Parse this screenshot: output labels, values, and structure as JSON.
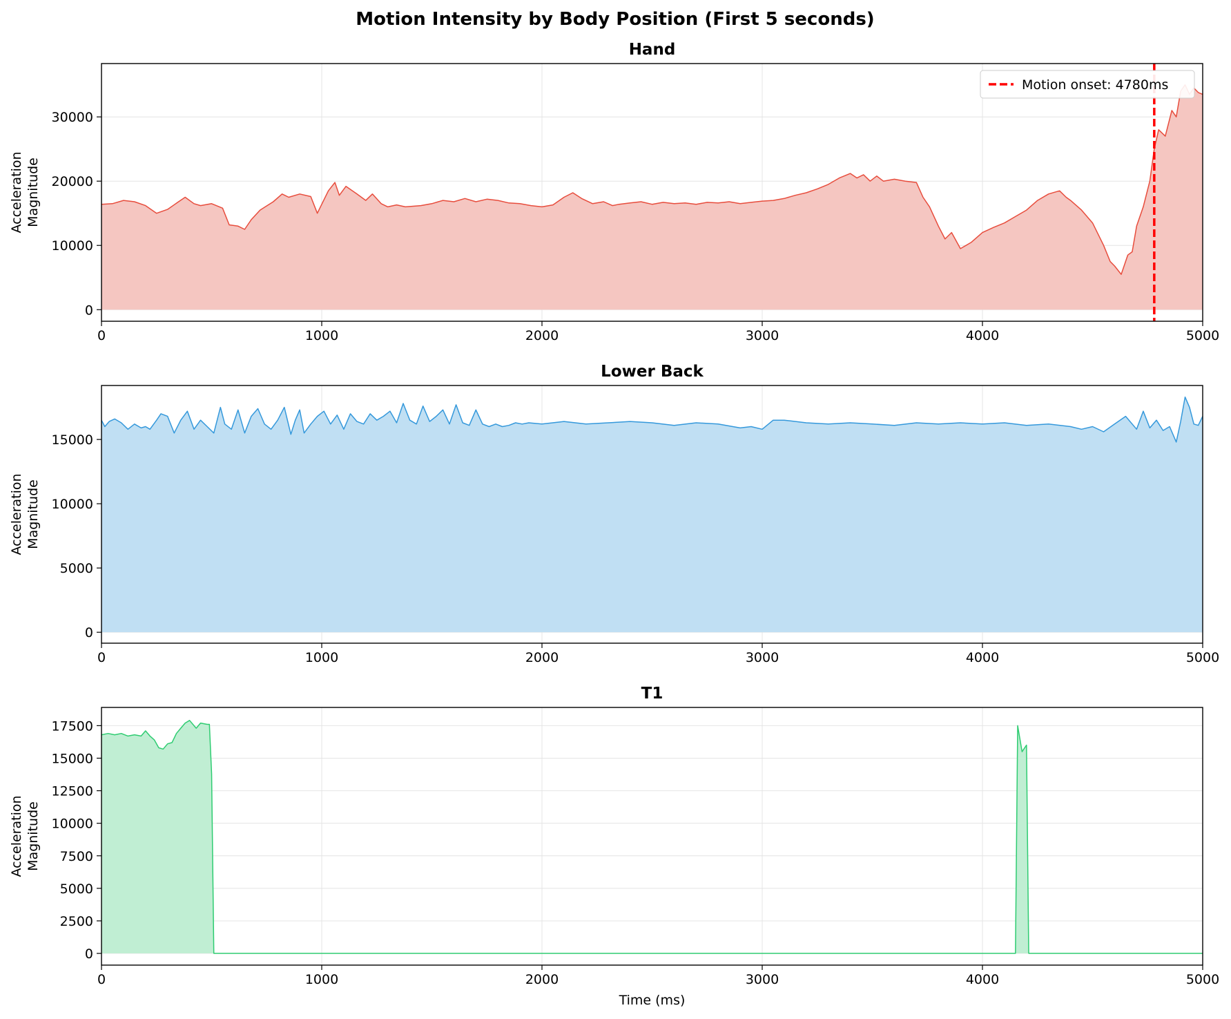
{
  "figure": {
    "title": "Motion Intensity by Body Position (First 5 seconds)"
  },
  "chart_data": [
    {
      "type": "area",
      "title": "Hand",
      "ylabel": "Acceleration Magnitude",
      "xlabel": "",
      "xlim": [
        0,
        5000
      ],
      "ylim": [
        -1800,
        38300
      ],
      "xticks": [
        0,
        1000,
        2000,
        3000,
        4000,
        5000
      ],
      "yticks": [
        0,
        10000,
        20000,
        30000
      ],
      "grid": true,
      "color": "#e74c3c",
      "fill_color": "#f5c6c1",
      "legend_position": "top-right",
      "series": [
        {
          "x": [
            0,
            50,
            100,
            150,
            200,
            250,
            300,
            350,
            380,
            420,
            450,
            500,
            550,
            580,
            620,
            650,
            680,
            720,
            780,
            820,
            850,
            900,
            950,
            980,
            1030,
            1060,
            1080,
            1110,
            1160,
            1200,
            1230,
            1270,
            1300,
            1340,
            1380,
            1450,
            1500,
            1550,
            1600,
            1650,
            1700,
            1750,
            1800,
            1850,
            1900,
            1950,
            2000,
            2050,
            2100,
            2140,
            2180,
            2230,
            2280,
            2320,
            2350,
            2400,
            2450,
            2500,
            2550,
            2600,
            2650,
            2700,
            2750,
            2800,
            2850,
            2900,
            2950,
            3000,
            3050,
            3100,
            3150,
            3200,
            3250,
            3300,
            3350,
            3400,
            3430,
            3460,
            3490,
            3520,
            3550,
            3600,
            3650,
            3700,
            3730,
            3760,
            3800,
            3830,
            3860,
            3900,
            3950,
            4000,
            4050,
            4100,
            4150,
            4200,
            4250,
            4300,
            4350,
            4380,
            4400,
            4450,
            4500,
            4550,
            4580,
            4600,
            4630,
            4660,
            4680,
            4700,
            4730,
            4760,
            4780,
            4800,
            4830,
            4860,
            4880,
            4900,
            4920,
            4940,
            4960,
            4980,
            5000
          ],
          "y": [
            16400,
            16500,
            17000,
            16800,
            16200,
            15000,
            15600,
            16800,
            17500,
            16500,
            16200,
            16500,
            15800,
            13200,
            13000,
            12500,
            14000,
            15500,
            16800,
            18000,
            17500,
            18000,
            17600,
            15000,
            18500,
            19800,
            17800,
            19200,
            18000,
            17000,
            18000,
            16500,
            16000,
            16300,
            16000,
            16200,
            16500,
            17000,
            16800,
            17300,
            16800,
            17200,
            17000,
            16600,
            16500,
            16200,
            16000,
            16300,
            17500,
            18200,
            17300,
            16500,
            16800,
            16200,
            16400,
            16600,
            16800,
            16400,
            16700,
            16500,
            16600,
            16400,
            16700,
            16600,
            16800,
            16500,
            16700,
            16900,
            17000,
            17300,
            17800,
            18200,
            18800,
            19500,
            20500,
            21200,
            20500,
            21000,
            20000,
            20800,
            20000,
            20300,
            20000,
            19800,
            17500,
            16000,
            13000,
            11000,
            12000,
            9500,
            10500,
            12000,
            12800,
            13500,
            14500,
            15500,
            17000,
            18000,
            18500,
            17500,
            17000,
            15500,
            13500,
            10000,
            7500,
            6800,
            5500,
            8500,
            9000,
            13000,
            16000,
            20000,
            25000,
            28000,
            27000,
            31000,
            30000,
            34000,
            35000,
            33500,
            34500,
            33800,
            33500
          ]
        }
      ],
      "annotations": [
        {
          "type": "vline",
          "x": 4780,
          "color": "#ff0000",
          "style": "dashed",
          "label": "Motion onset: 4780ms"
        }
      ]
    },
    {
      "type": "area",
      "title": "Lower Back",
      "ylabel": "Acceleration Magnitude",
      "xlabel": "",
      "xlim": [
        0,
        5000
      ],
      "ylim": [
        -850,
        19200
      ],
      "xticks": [
        0,
        1000,
        2000,
        3000,
        4000,
        5000
      ],
      "yticks": [
        0,
        5000,
        10000,
        15000
      ],
      "grid": true,
      "color": "#3498db",
      "fill_color": "#c0dff3",
      "series": [
        {
          "x": [
            0,
            15,
            35,
            60,
            90,
            120,
            150,
            180,
            200,
            220,
            250,
            270,
            300,
            330,
            360,
            390,
            420,
            450,
            480,
            510,
            540,
            560,
            590,
            620,
            650,
            680,
            710,
            740,
            770,
            800,
            830,
            860,
            880,
            900,
            920,
            950,
            980,
            1010,
            1040,
            1070,
            1100,
            1130,
            1160,
            1190,
            1220,
            1250,
            1280,
            1310,
            1340,
            1370,
            1400,
            1430,
            1460,
            1490,
            1520,
            1550,
            1580,
            1610,
            1640,
            1670,
            1700,
            1730,
            1760,
            1790,
            1820,
            1850,
            1880,
            1910,
            1940,
            2000,
            2100,
            2200,
            2300,
            2400,
            2500,
            2600,
            2700,
            2800,
            2900,
            2950,
            3000,
            3050,
            3100,
            3200,
            3300,
            3400,
            3500,
            3600,
            3700,
            3800,
            3900,
            4000,
            4100,
            4200,
            4300,
            4400,
            4450,
            4500,
            4550,
            4600,
            4650,
            4700,
            4730,
            4760,
            4790,
            4820,
            4850,
            4880,
            4900,
            4920,
            4940,
            4960,
            4980,
            5000
          ],
          "y": [
            16500,
            16000,
            16400,
            16600,
            16300,
            15800,
            16200,
            15900,
            16000,
            15800,
            16500,
            17000,
            16800,
            15500,
            16500,
            17200,
            15800,
            16500,
            16000,
            15500,
            17500,
            16200,
            15800,
            17300,
            15500,
            16800,
            17400,
            16200,
            15800,
            16500,
            17500,
            15400,
            16500,
            17300,
            15500,
            16200,
            16800,
            17200,
            16200,
            16900,
            15800,
            17000,
            16400,
            16200,
            17000,
            16500,
            16800,
            17200,
            16300,
            17800,
            16500,
            16200,
            17600,
            16400,
            16800,
            17300,
            16200,
            17700,
            16300,
            16100,
            17300,
            16200,
            16000,
            16200,
            16000,
            16100,
            16300,
            16200,
            16300,
            16200,
            16400,
            16200,
            16300,
            16400,
            16300,
            16100,
            16300,
            16200,
            15900,
            16000,
            15800,
            16500,
            16500,
            16300,
            16200,
            16300,
            16200,
            16100,
            16300,
            16200,
            16300,
            16200,
            16300,
            16100,
            16200,
            16000,
            15800,
            16000,
            15600,
            16200,
            16800,
            15800,
            17200,
            15900,
            16500,
            15700,
            16000,
            14800,
            16400,
            18300,
            17500,
            16200,
            16100,
            16800
          ]
        }
      ]
    },
    {
      "type": "area",
      "title": "T1",
      "ylabel": "Acceleration Magnitude",
      "xlabel": "Time (ms)",
      "xlim": [
        0,
        5000
      ],
      "ylim": [
        -900,
        18900
      ],
      "xticks": [
        0,
        1000,
        2000,
        3000,
        4000,
        5000
      ],
      "yticks": [
        0,
        2500,
        5000,
        7500,
        10000,
        12500,
        15000,
        17500
      ],
      "grid": true,
      "color": "#2ecc71",
      "fill_color": "#c0eed3",
      "series": [
        {
          "x": [
            0,
            30,
            60,
            90,
            120,
            150,
            180,
            200,
            220,
            240,
            260,
            280,
            300,
            320,
            340,
            360,
            380,
            400,
            430,
            450,
            480,
            490,
            500,
            510,
            530,
            1000,
            2000,
            3000,
            4000,
            4150,
            4160,
            4180,
            4200,
            4210,
            4220,
            4300,
            5000
          ],
          "y": [
            16800,
            16900,
            16800,
            16900,
            16700,
            16800,
            16700,
            17100,
            16700,
            16400,
            15800,
            15700,
            16100,
            16200,
            16900,
            17300,
            17700,
            17900,
            17300,
            17700,
            17600,
            17600,
            13800,
            0,
            0,
            0,
            0,
            0,
            0,
            0,
            17500,
            15500,
            16000,
            0,
            0,
            0,
            0
          ]
        }
      ]
    }
  ]
}
